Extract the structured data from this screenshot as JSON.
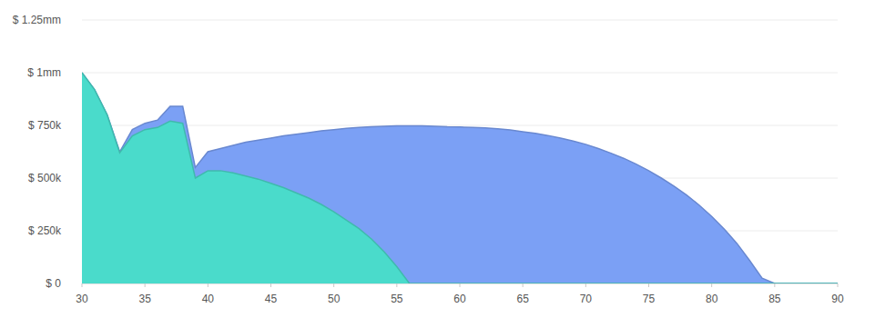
{
  "chart_data": {
    "type": "area",
    "x": [
      30,
      31,
      32,
      33,
      34,
      35,
      36,
      37,
      38,
      39,
      40,
      41,
      42,
      43,
      44,
      45,
      46,
      47,
      48,
      49,
      50,
      51,
      52,
      53,
      54,
      55,
      56,
      57,
      58,
      59,
      60,
      61,
      62,
      63,
      64,
      65,
      66,
      67,
      68,
      69,
      70,
      71,
      72,
      73,
      74,
      75,
      76,
      77,
      78,
      79,
      80,
      81,
      82,
      83,
      84,
      85,
      86,
      87,
      88,
      89,
      90
    ],
    "series": [
      {
        "color": "#7ba0f5",
        "values": [
          1000000,
          920000,
          800000,
          625000,
          730000,
          760000,
          775000,
          840000,
          840000,
          550000,
          625000,
          640000,
          655000,
          670000,
          680000,
          690000,
          700000,
          708000,
          716000,
          724000,
          730000,
          736000,
          740000,
          744000,
          746000,
          748000,
          748000,
          748000,
          746000,
          743000,
          742000,
          740000,
          738000,
          734000,
          728000,
          720000,
          712000,
          702000,
          690000,
          676000,
          660000,
          640000,
          618000,
          594000,
          566000,
          535000,
          500000,
          462000,
          420000,
          372000,
          318000,
          258000,
          190000,
          110000,
          25000,
          0,
          0,
          0,
          0,
          0,
          0
        ]
      },
      {
        "color": "#4adbcb",
        "values": [
          1000000,
          920000,
          800000,
          620000,
          700000,
          730000,
          740000,
          770000,
          760000,
          500000,
          535000,
          535000,
          525000,
          510000,
          495000,
          475000,
          455000,
          430000,
          405000,
          375000,
          340000,
          300000,
          260000,
          210000,
          150000,
          80000,
          0,
          0,
          0,
          0,
          0,
          0,
          0,
          0,
          0,
          0,
          0,
          0,
          0,
          0,
          0,
          0,
          0,
          0,
          0,
          0,
          0,
          0,
          0,
          0,
          0,
          0,
          0,
          0,
          0,
          0,
          0,
          0,
          0,
          0,
          0
        ]
      }
    ],
    "xlim": [
      30,
      90
    ],
    "xticks": [
      30,
      35,
      40,
      45,
      50,
      55,
      60,
      65,
      70,
      75,
      80,
      85,
      90
    ],
    "ylim": [
      0,
      1250000
    ],
    "yticks": [
      {
        "value": 0,
        "label": "$ 0"
      },
      {
        "value": 250000,
        "label": "$ 250k"
      },
      {
        "value": 500000,
        "label": "$ 500k"
      },
      {
        "value": 750000,
        "label": "$ 750k"
      },
      {
        "value": 1000000,
        "label": "$ 1mm"
      },
      {
        "value": 1250000,
        "label": "$ 1.25mm"
      }
    ],
    "grid": true
  }
}
